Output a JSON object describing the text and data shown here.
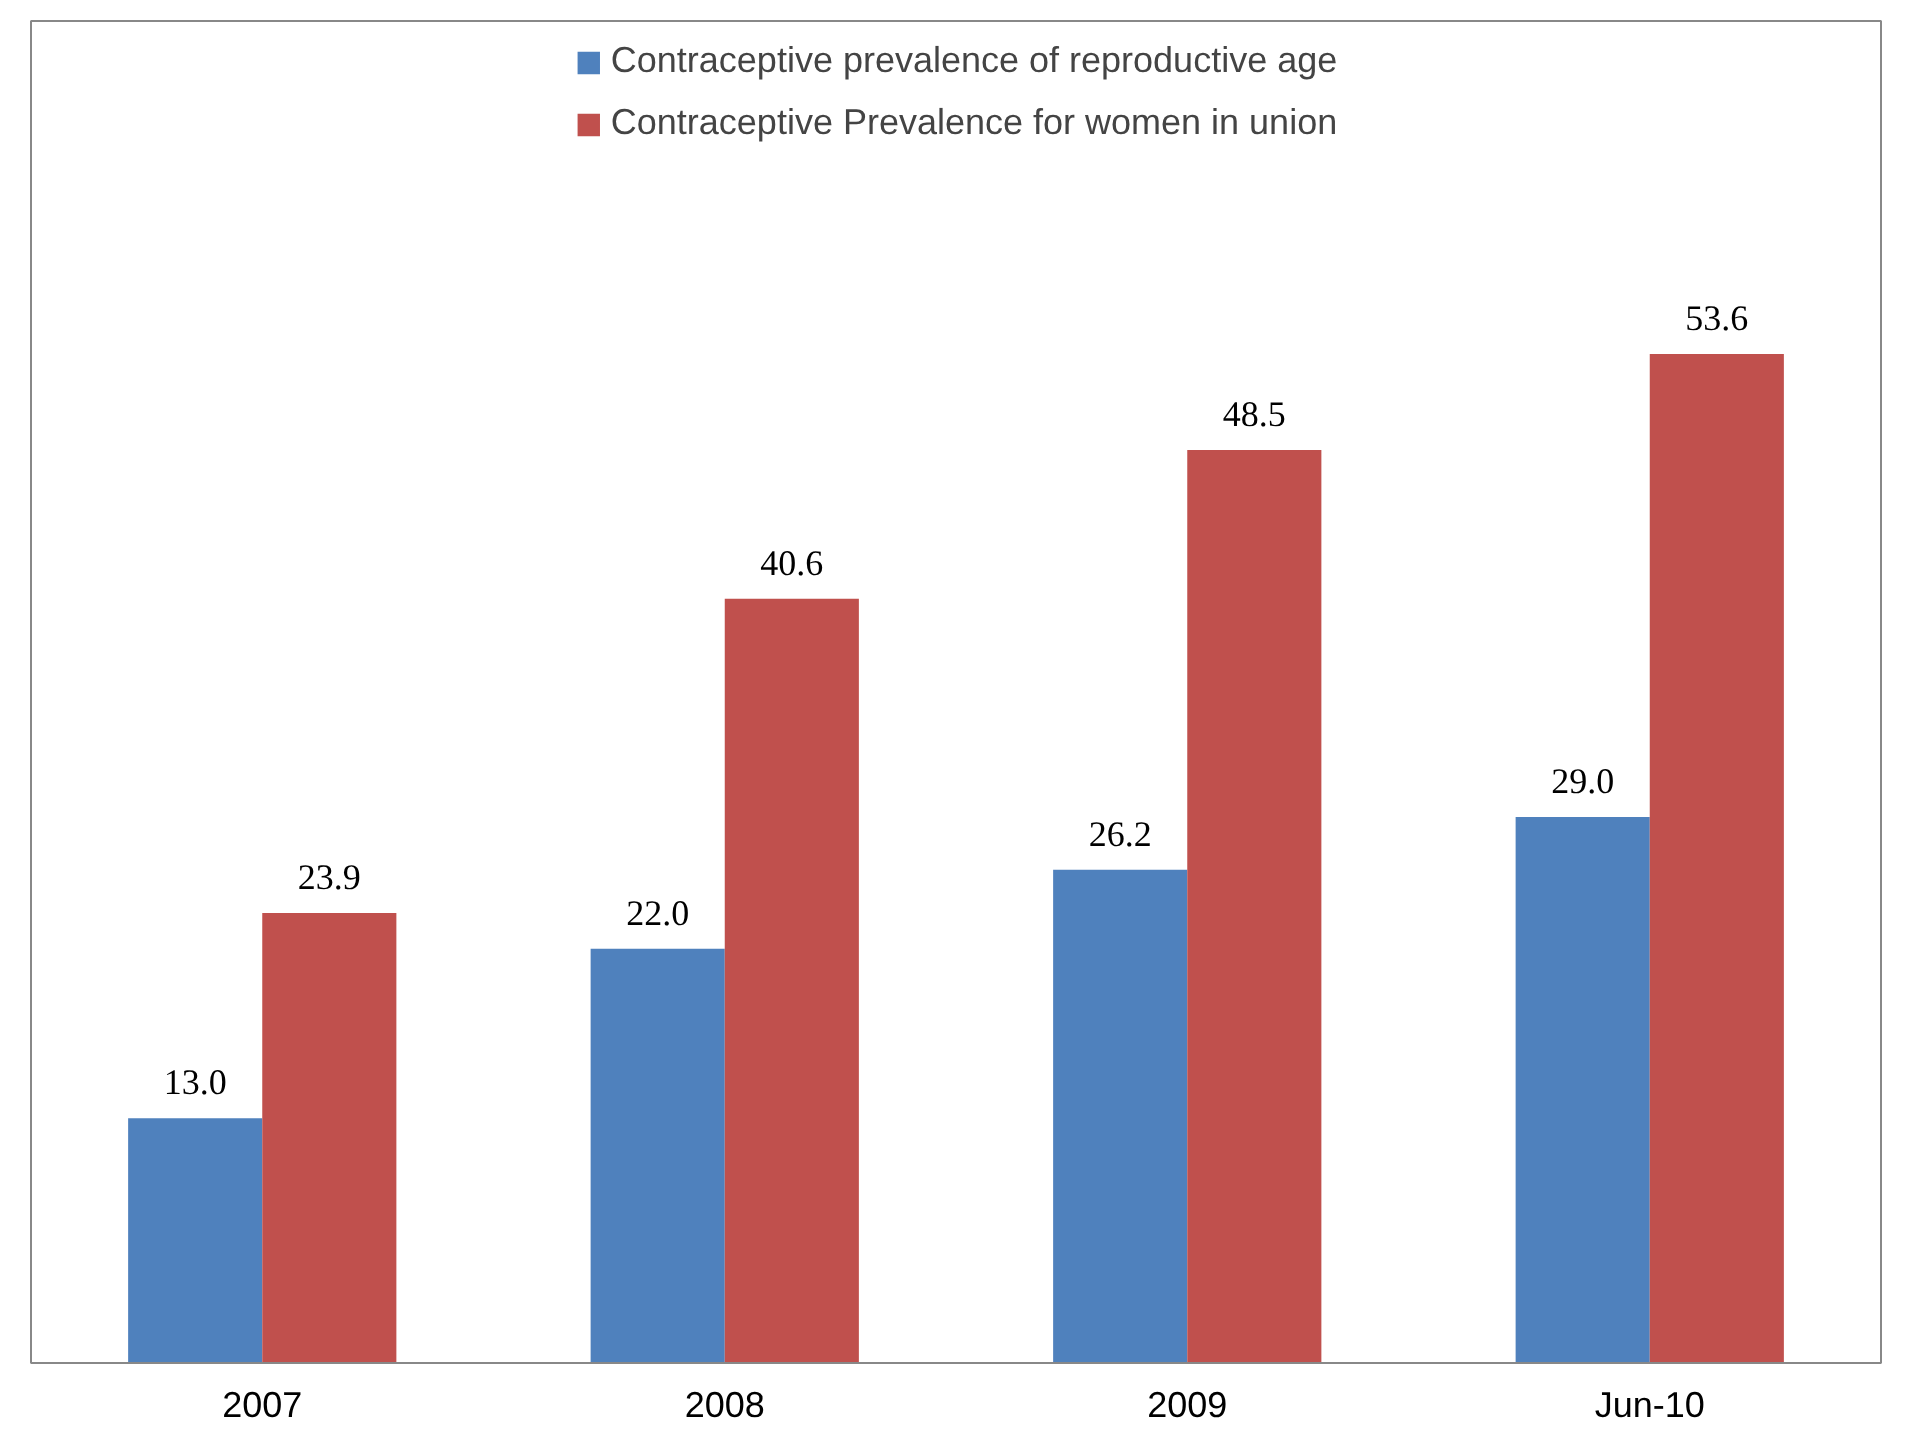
{
  "chart_data": {
    "type": "bar",
    "categories": [
      "2007",
      "2008",
      "2009",
      "Jun-10"
    ],
    "series": [
      {
        "name": "Contraceptive prevalence of reproductive age",
        "color": "#4f81bd",
        "values": [
          13.0,
          22.0,
          26.2,
          29.0
        ],
        "value_labels": [
          "13.0",
          "22.0",
          "26.2",
          "29.0"
        ]
      },
      {
        "name": "Contraceptive Prevalence for women in union",
        "color": "#c0504d",
        "values": [
          23.9,
          40.6,
          48.5,
          53.6
        ],
        "value_labels": [
          "23.9",
          "40.6",
          "48.5",
          "53.6"
        ]
      }
    ],
    "legend": "top",
    "grid": false
  }
}
